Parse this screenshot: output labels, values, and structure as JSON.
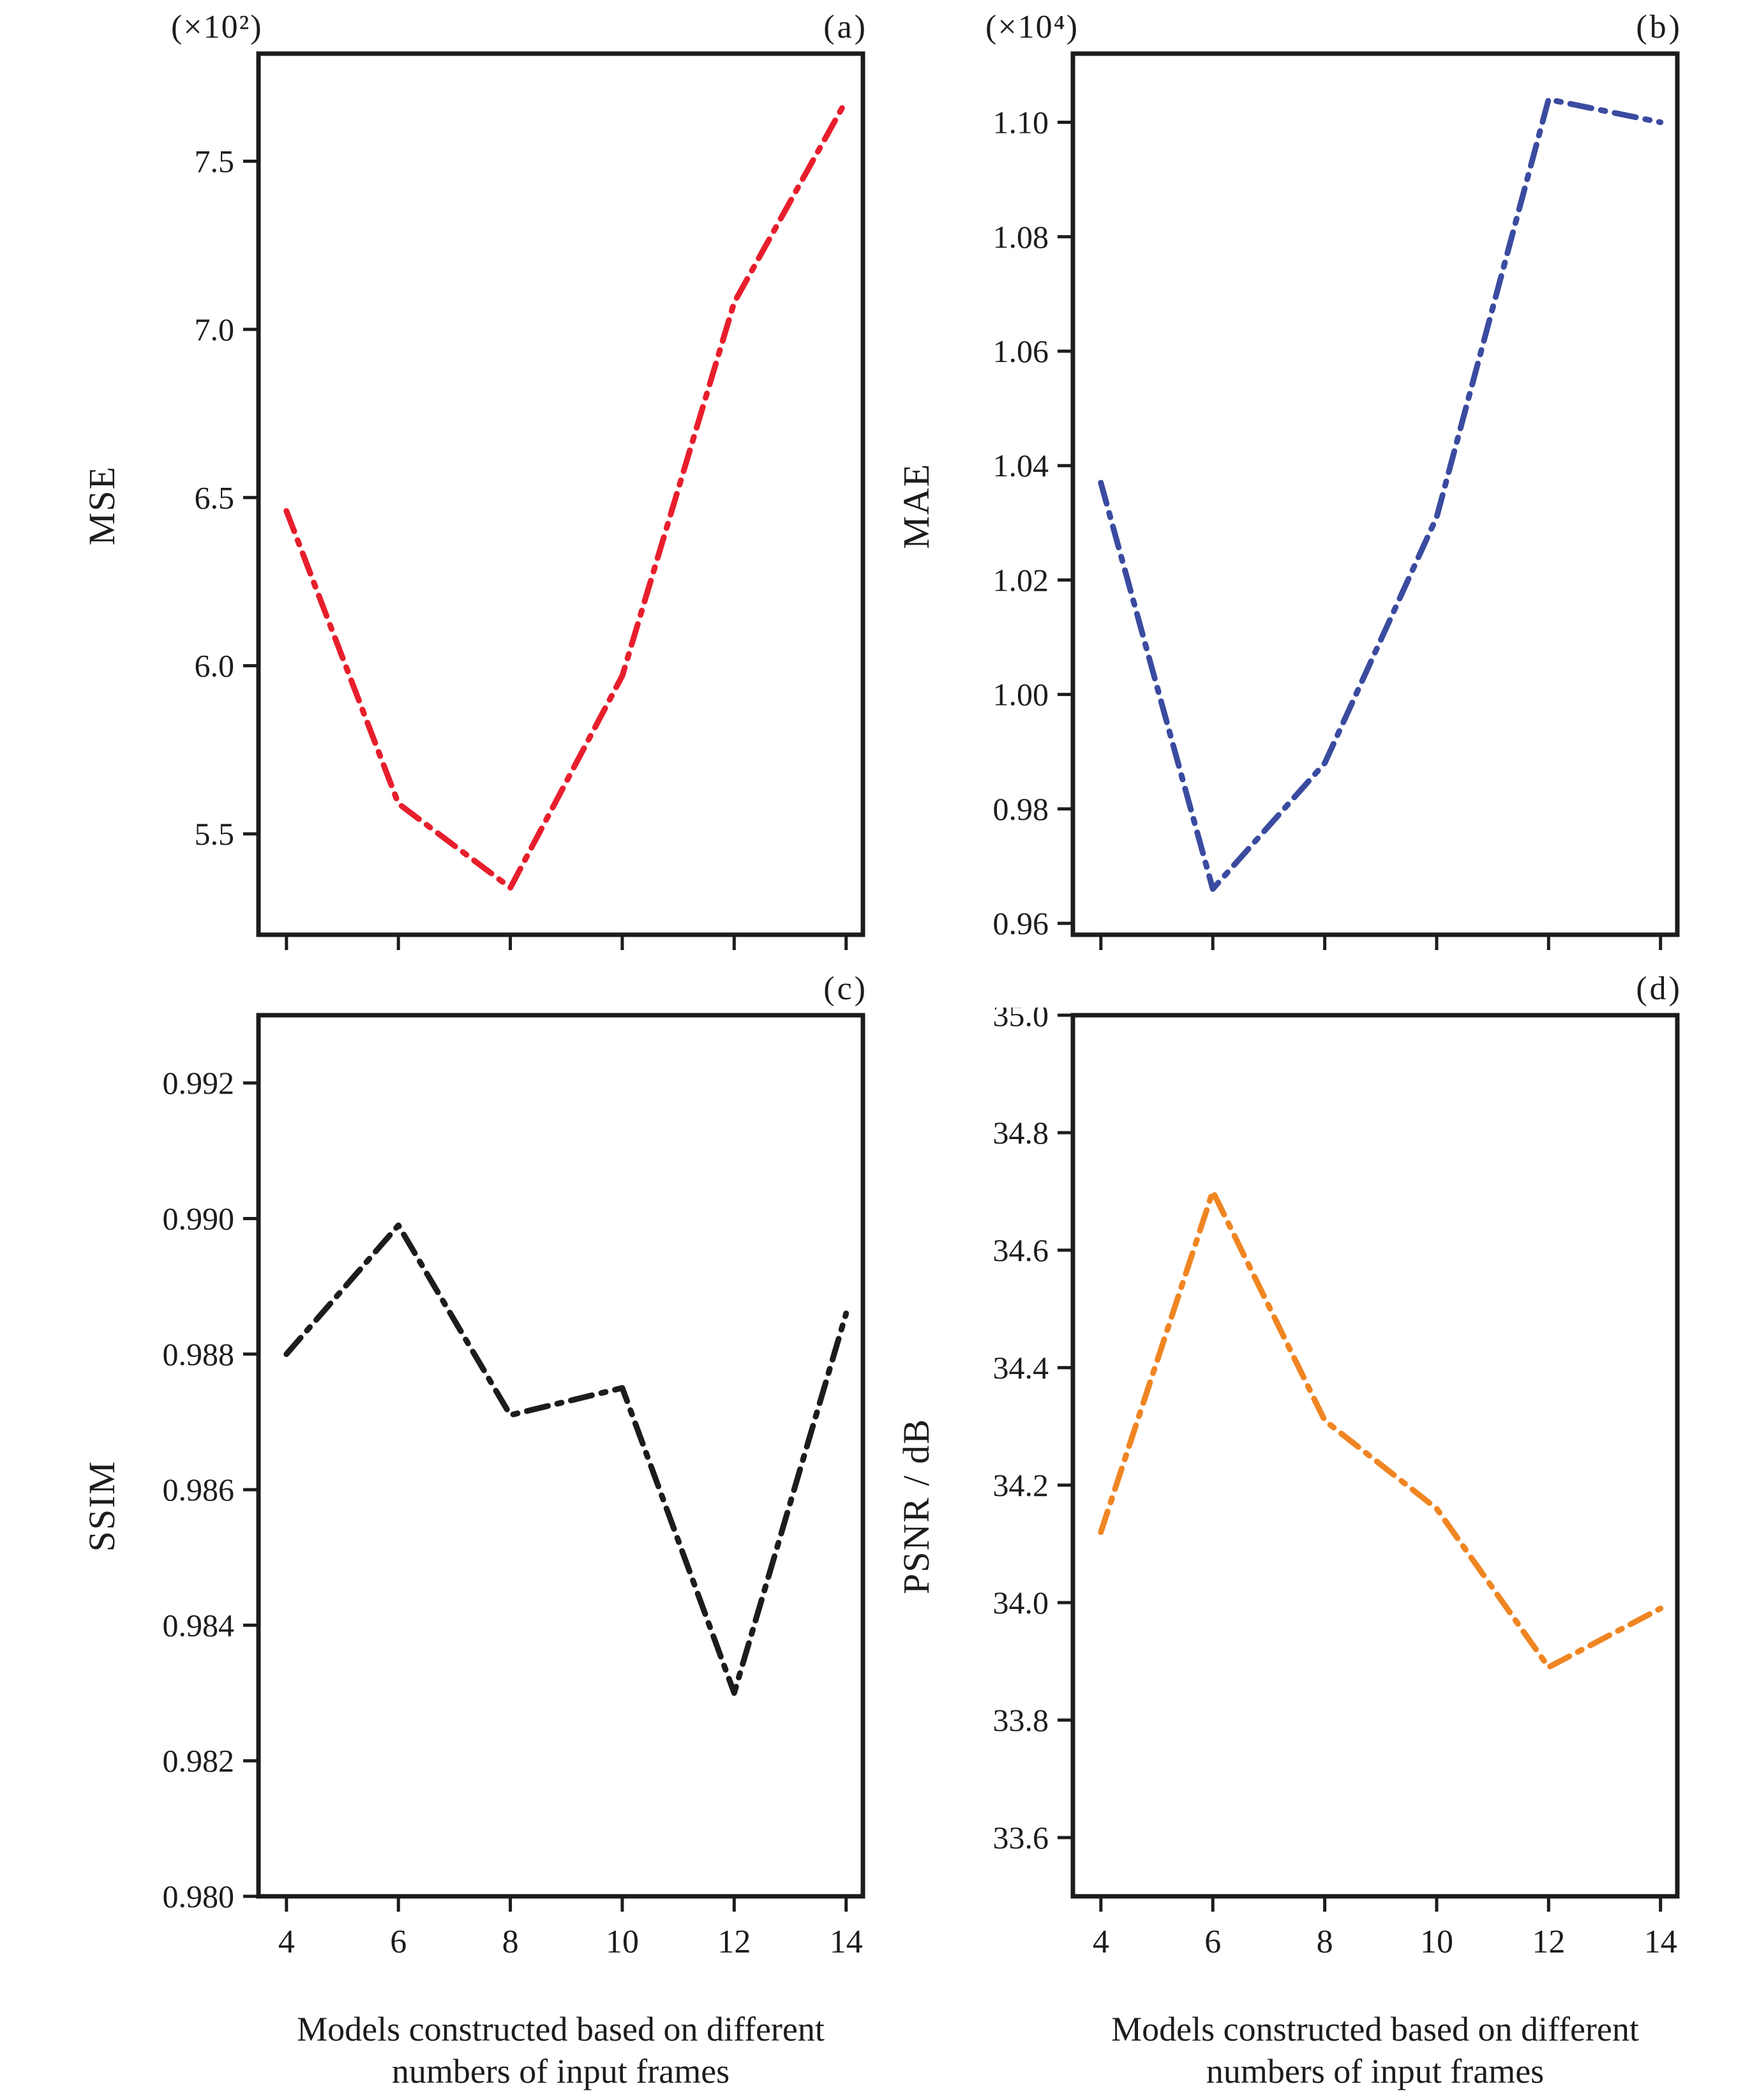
{
  "figure": {
    "x_axis_label_line1": "Models constructed  based on different",
    "x_axis_label_line2": "numbers of input frames"
  },
  "chart_data": [
    {
      "type": "line",
      "panel_label": "(a)",
      "scale_label": "(×10²)",
      "ylabel": "MSE",
      "color": "#e81e2c",
      "line_style": "dash-dot",
      "grid": false,
      "x": [
        4,
        6,
        8,
        10,
        12,
        14
      ],
      "values": [
        6.46,
        5.59,
        5.34,
        5.97,
        7.08,
        7.68
      ],
      "xlim": [
        3.5,
        14.3
      ],
      "ylim": [
        5.2,
        7.82
      ],
      "y_ticks": [
        5.5,
        6.0,
        6.5,
        7.0,
        7.5
      ],
      "y_tick_labels": [
        "5.5",
        "6.0",
        "6.5",
        "7.0",
        "7.5"
      ],
      "x_tick_labels": null
    },
    {
      "type": "line",
      "panel_label": "(b)",
      "scale_label": "(×10⁴)",
      "ylabel": "MAE",
      "color": "#3a4ba0",
      "line_style": "dash-dot",
      "grid": false,
      "x": [
        4,
        6,
        8,
        10,
        12,
        14
      ],
      "values": [
        1.037,
        0.966,
        0.988,
        1.031,
        1.104,
        1.1
      ],
      "xlim": [
        3.5,
        14.3
      ],
      "ylim": [
        0.958,
        1.112
      ],
      "y_ticks": [
        0.96,
        0.98,
        1.0,
        1.02,
        1.04,
        1.06,
        1.08,
        1.1
      ],
      "y_tick_labels": [
        "0.96",
        "0.98",
        "1.00",
        "1.02",
        "1.04",
        "1.06",
        "1.08",
        "1.10"
      ],
      "x_tick_labels": null
    },
    {
      "type": "line",
      "panel_label": "(c)",
      "scale_label": "",
      "ylabel": "SSIM",
      "color": "#1c1c1c",
      "line_style": "dash-dot",
      "grid": false,
      "x": [
        4,
        6,
        8,
        10,
        12,
        14
      ],
      "values": [
        0.988,
        0.9899,
        0.9871,
        0.9875,
        0.983,
        0.9886
      ],
      "xlim": [
        3.5,
        14.3
      ],
      "ylim": [
        0.98,
        0.993
      ],
      "y_ticks": [
        0.98,
        0.982,
        0.984,
        0.986,
        0.988,
        0.99,
        0.992
      ],
      "y_tick_labels": [
        "0.980",
        "0.982",
        "0.984",
        "0.986",
        "0.988",
        "0.990",
        "0.992"
      ],
      "x_tick_labels": [
        "4",
        "6",
        "8",
        "10",
        "12",
        "14"
      ]
    },
    {
      "type": "line",
      "panel_label": "(d)",
      "scale_label": "",
      "ylabel": "PSNR / dB",
      "color": "#f08522",
      "line_style": "dash-dot",
      "grid": false,
      "x": [
        4,
        6,
        8,
        10,
        12,
        14
      ],
      "values": [
        34.12,
        34.7,
        34.31,
        34.16,
        33.89,
        33.99
      ],
      "xlim": [
        3.5,
        14.3
      ],
      "ylim": [
        33.5,
        35.0
      ],
      "y_ticks": [
        33.6,
        33.8,
        34.0,
        34.2,
        34.4,
        34.6,
        34.8,
        35.0
      ],
      "y_tick_labels": [
        "33.6",
        "33.8",
        "34.0",
        "34.2",
        "34.4",
        "34.6",
        "34.8",
        "35.0"
      ],
      "x_tick_labels": [
        "4",
        "6",
        "8",
        "10",
        "12",
        "14"
      ]
    }
  ]
}
